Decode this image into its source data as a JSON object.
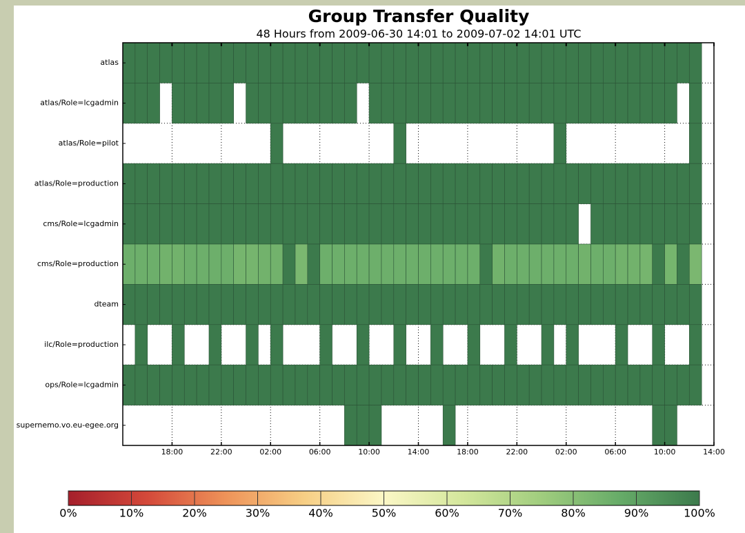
{
  "chart_data": {
    "type": "heatmap",
    "title": "Group Transfer Quality",
    "subtitle": "48 Hours from 2009-06-30 14:01 to 2009-07-02 14:01 UTC",
    "rows": [
      "atlas",
      "atlas/Role=lcgadmin",
      "atlas/Role=pilot",
      "atlas/Role=production",
      "cms/Role=lcgadmin",
      "cms/Role=production",
      "dteam",
      "ilc/Role=production",
      "ops/Role=lcgadmin",
      "supernemo.vo.eu-egee.org"
    ],
    "x": [
      0,
      1,
      2,
      3,
      4,
      5,
      6,
      7,
      8,
      9,
      10,
      11,
      12,
      13,
      14,
      15,
      16,
      17,
      18,
      19,
      20,
      21,
      22,
      23,
      24,
      25,
      26,
      27,
      28,
      29,
      30,
      31,
      32,
      33,
      34,
      35,
      36,
      37,
      38,
      39,
      40,
      41,
      42,
      43,
      44,
      45,
      46
    ],
    "series": [
      {
        "name": "atlas",
        "values": [
          100,
          100,
          100,
          100,
          100,
          100,
          100,
          100,
          100,
          100,
          100,
          100,
          100,
          100,
          100,
          100,
          100,
          100,
          100,
          100,
          100,
          100,
          100,
          100,
          100,
          100,
          100,
          100,
          100,
          100,
          100,
          100,
          100,
          100,
          100,
          100,
          100,
          100,
          100,
          100,
          100,
          100,
          100,
          100,
          100,
          100,
          100
        ]
      },
      {
        "name": "atlas/Role=lcgadmin",
        "values": [
          100,
          100,
          100,
          null,
          100,
          100,
          100,
          100,
          100,
          null,
          100,
          100,
          100,
          100,
          100,
          100,
          100,
          100,
          100,
          null,
          100,
          100,
          100,
          100,
          100,
          100,
          100,
          100,
          100,
          100,
          100,
          100,
          100,
          100,
          100,
          100,
          100,
          100,
          100,
          100,
          100,
          100,
          100,
          100,
          100,
          null,
          100
        ]
      },
      {
        "name": "atlas/Role=pilot",
        "values": [
          null,
          null,
          null,
          null,
          null,
          null,
          null,
          null,
          null,
          null,
          null,
          null,
          100,
          null,
          null,
          null,
          null,
          null,
          null,
          null,
          null,
          null,
          100,
          null,
          null,
          null,
          null,
          null,
          null,
          null,
          null,
          null,
          null,
          null,
          null,
          100,
          null,
          null,
          null,
          null,
          null,
          null,
          null,
          null,
          null,
          null,
          100
        ]
      },
      {
        "name": "atlas/Role=production",
        "values": [
          100,
          100,
          100,
          100,
          100,
          100,
          100,
          100,
          100,
          100,
          100,
          100,
          100,
          100,
          100,
          100,
          100,
          100,
          100,
          100,
          100,
          100,
          100,
          100,
          100,
          100,
          100,
          100,
          100,
          100,
          100,
          100,
          100,
          100,
          100,
          100,
          100,
          100,
          100,
          100,
          100,
          100,
          100,
          100,
          100,
          100,
          100
        ]
      },
      {
        "name": "cms/Role=lcgadmin",
        "values": [
          100,
          100,
          100,
          100,
          100,
          100,
          100,
          100,
          100,
          100,
          100,
          100,
          100,
          100,
          100,
          100,
          100,
          100,
          100,
          100,
          100,
          100,
          100,
          100,
          100,
          100,
          100,
          100,
          100,
          100,
          100,
          100,
          100,
          100,
          100,
          100,
          100,
          null,
          100,
          100,
          100,
          100,
          100,
          100,
          100,
          100,
          100
        ]
      },
      {
        "name": "cms/Role=production",
        "values": [
          86,
          86,
          86,
          85,
          85,
          86,
          86,
          86,
          86,
          84,
          84,
          85,
          85,
          100,
          83,
          100,
          86,
          86,
          86,
          86,
          86,
          86,
          86,
          86,
          86,
          86,
          86,
          86,
          86,
          100,
          85,
          86,
          86,
          86,
          86,
          86,
          86,
          85,
          86,
          86,
          85,
          85,
          84,
          100,
          84,
          100,
          83
        ]
      },
      {
        "name": "dteam",
        "values": [
          100,
          100,
          100,
          100,
          100,
          100,
          100,
          100,
          100,
          100,
          100,
          100,
          100,
          100,
          100,
          100,
          100,
          100,
          100,
          100,
          100,
          100,
          100,
          100,
          100,
          100,
          100,
          100,
          100,
          100,
          100,
          100,
          100,
          100,
          100,
          100,
          100,
          100,
          100,
          100,
          100,
          100,
          100,
          100,
          100,
          100,
          100
        ]
      },
      {
        "name": "ilc/Role=production",
        "values": [
          null,
          100,
          null,
          null,
          100,
          null,
          null,
          100,
          null,
          null,
          100,
          null,
          100,
          null,
          null,
          null,
          100,
          null,
          null,
          100,
          null,
          null,
          100,
          null,
          null,
          100,
          null,
          null,
          100,
          null,
          null,
          100,
          null,
          null,
          100,
          null,
          100,
          null,
          null,
          null,
          100,
          null,
          null,
          100,
          null,
          null,
          100
        ]
      },
      {
        "name": "ops/Role=lcgadmin",
        "values": [
          100,
          100,
          100,
          100,
          100,
          100,
          100,
          100,
          100,
          100,
          100,
          100,
          100,
          100,
          100,
          100,
          100,
          100,
          100,
          100,
          100,
          100,
          100,
          100,
          100,
          100,
          100,
          100,
          100,
          100,
          100,
          100,
          100,
          100,
          100,
          100,
          100,
          100,
          100,
          100,
          100,
          100,
          100,
          100,
          100,
          100,
          100
        ]
      },
      {
        "name": "supernemo.vo.eu-egee.org",
        "values": [
          null,
          null,
          null,
          null,
          null,
          null,
          null,
          null,
          null,
          null,
          null,
          null,
          null,
          null,
          null,
          null,
          null,
          null,
          100,
          100,
          100,
          null,
          null,
          null,
          null,
          null,
          100,
          null,
          null,
          null,
          null,
          null,
          null,
          null,
          null,
          null,
          null,
          null,
          null,
          null,
          null,
          null,
          null,
          100,
          100,
          null,
          null
        ]
      }
    ],
    "xlim": [
      0,
      48
    ],
    "xticks": [
      {
        "value": 4,
        "label": "18:00"
      },
      {
        "value": 8,
        "label": "22:00"
      },
      {
        "value": 12,
        "label": "02:00"
      },
      {
        "value": 16,
        "label": "06:00"
      },
      {
        "value": 20,
        "label": "10:00"
      },
      {
        "value": 24,
        "label": "14:00"
      },
      {
        "value": 28,
        "label": "18:00"
      },
      {
        "value": 32,
        "label": "22:00"
      },
      {
        "value": 36,
        "label": "02:00"
      },
      {
        "value": 40,
        "label": "06:00"
      },
      {
        "value": 44,
        "label": "10:00"
      },
      {
        "value": 48,
        "label": "14:00"
      }
    ],
    "grid": true,
    "clim": [
      0,
      100
    ],
    "colormap": [
      "#a51f2b",
      "#d4493a",
      "#ee9359",
      "#f7cf85",
      "#fbf7c6",
      "#d4e79c",
      "#a0cd7e",
      "#66ab68",
      "#3c7a4c"
    ],
    "cticks": [
      {
        "value": 0,
        "label": "0%"
      },
      {
        "value": 10,
        "label": "10%"
      },
      {
        "value": 20,
        "label": "20%"
      },
      {
        "value": 30,
        "label": "30%"
      },
      {
        "value": 40,
        "label": "40%"
      },
      {
        "value": 50,
        "label": "50%"
      },
      {
        "value": 60,
        "label": "60%"
      },
      {
        "value": 70,
        "label": "70%"
      },
      {
        "value": 80,
        "label": "80%"
      },
      {
        "value": 90,
        "label": "90%"
      },
      {
        "value": 100,
        "label": "100%"
      }
    ]
  }
}
